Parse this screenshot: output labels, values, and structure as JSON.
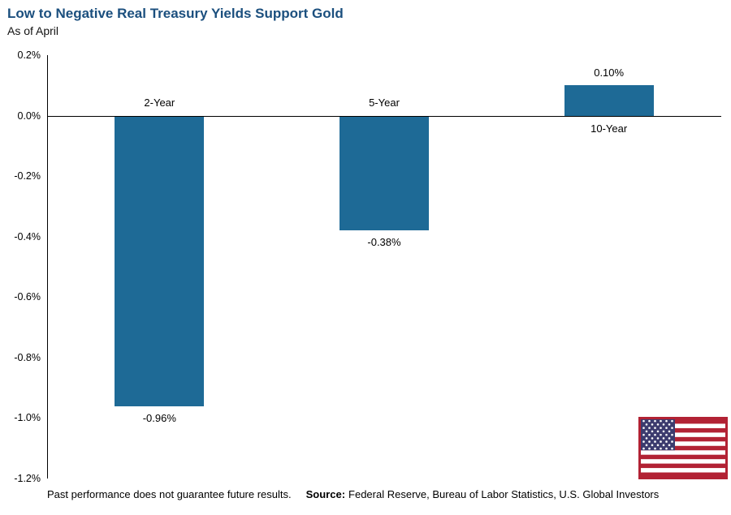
{
  "header": {
    "title": "Low to Negative Real Treasury Yields Support Gold",
    "subtitle": "As of April"
  },
  "chart_data": {
    "type": "bar",
    "title": "Low to Negative Real Treasury Yields Support Gold",
    "subtitle": "As of April",
    "categories": [
      "2-Year",
      "5-Year",
      "10-Year"
    ],
    "values": [
      -0.96,
      -0.38,
      0.1
    ],
    "value_labels": [
      "-0.96%",
      "-0.38%",
      "0.10%"
    ],
    "unit": "%",
    "xlabel": "",
    "ylabel": "",
    "ylim": [
      -1.2,
      0.2
    ],
    "ytick_values": [
      0.2,
      0.0,
      -0.2,
      -0.4,
      -0.6,
      -0.8,
      -1.0,
      -1.2
    ],
    "ytick_labels": [
      "0.2%",
      "0.0%",
      "-0.2%",
      "-0.4%",
      "-0.6%",
      "-0.8%",
      "-1.0%",
      "-1.2%"
    ],
    "grid": false,
    "legend": "none",
    "bar_color": "#1E6A96"
  },
  "footer": {
    "disclaimer": "Past performance does not guarantee future results.",
    "source_label": "Source:",
    "source_text": "Federal Reserve, Bureau of Labor Statistics, U.S. Global Investors"
  },
  "icons": {
    "flag": "us-flag-icon"
  },
  "colors": {
    "title": "#1B4F7E",
    "bar": "#1E6A96",
    "axis": "#000000",
    "flag_red": "#B22234",
    "flag_blue": "#3C3B6E",
    "flag_white": "#FFFFFF"
  }
}
